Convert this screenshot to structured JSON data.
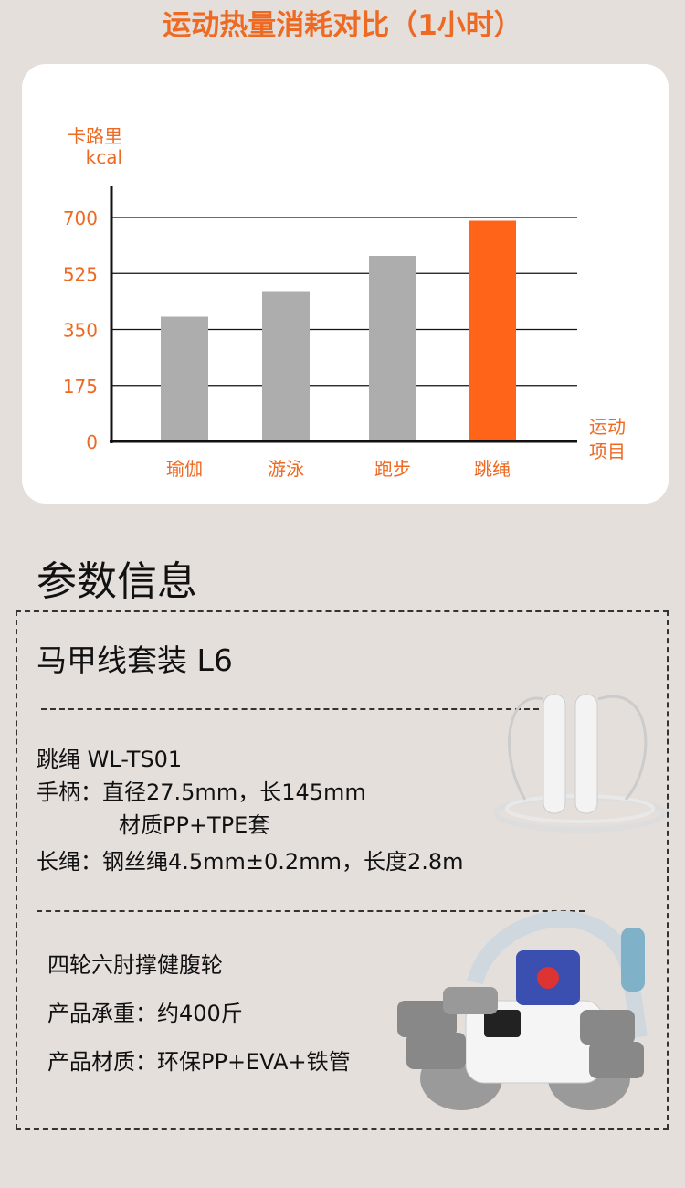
{
  "title": "运动热量消耗对比（1小时）",
  "chart_data": {
    "type": "bar",
    "categories": [
      "瑜伽",
      "游泳",
      "跑步",
      "跳绳"
    ],
    "values": [
      390,
      470,
      580,
      690
    ],
    "bar_colors": [
      "#adadad",
      "#adadad",
      "#adadad",
      "#ff6418"
    ],
    "ylabel": [
      "卡路里",
      "kcal"
    ],
    "xlabel": [
      "运动",
      "项目"
    ],
    "yticks": [
      0,
      175,
      350,
      525,
      700
    ],
    "ylim": [
      0,
      700
    ],
    "grid": true,
    "label_color": "#ee6a22"
  },
  "specs": {
    "section_title": "参数信息",
    "kit_name": "马甲线套装 L6",
    "rope": {
      "model": "跳绳 WL-TS01",
      "handle": "手柄：直径27.5mm，长145mm",
      "handle_material": "材质PP+TPE套",
      "rope": "长绳：钢丝绳4.5mm±0.2mm，长度2.8m"
    },
    "wheel": {
      "name": "四轮六肘撑健腹轮",
      "load": "产品承重：约400斤",
      "material": "产品材质：环保PP+EVA+铁管"
    }
  }
}
